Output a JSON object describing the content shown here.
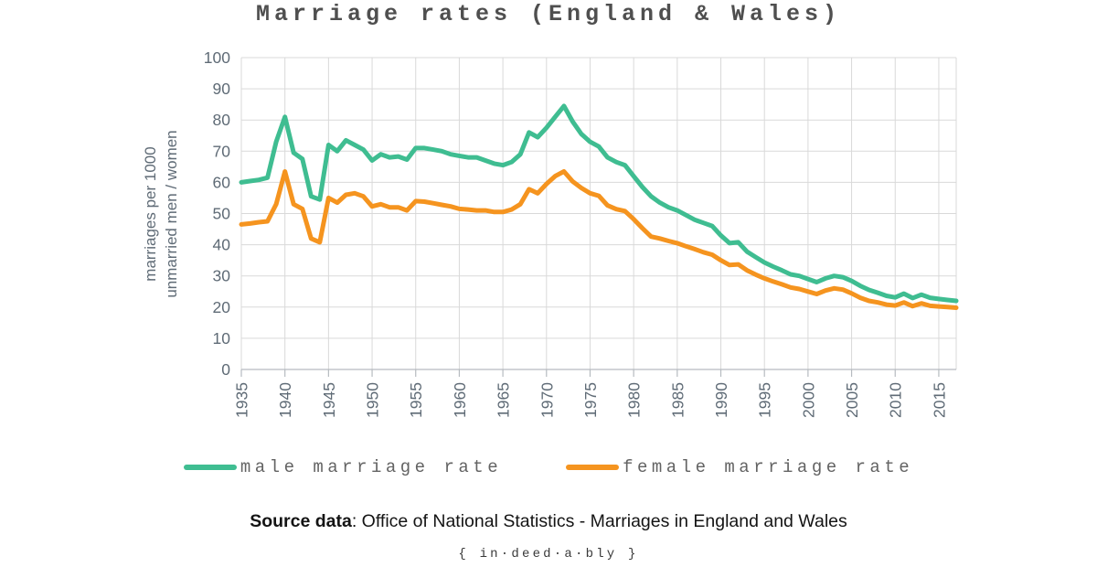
{
  "title": "Marriage rates (England & Wales)",
  "y_axis": {
    "title_line1": "marriages per 1000",
    "title_line2": "unmarried men / women"
  },
  "source": {
    "prefix": "Source data",
    "text": ": Office of National Statistics - Marriages in England and Wales"
  },
  "brand": "{ in·deed·a·bly }",
  "colors": {
    "male": "#3fbd91",
    "female": "#f5941f",
    "grid": "#d9d9d9",
    "axis_line": "#b6bbc0",
    "axis_text": "#5f6b76"
  },
  "chart_data": {
    "type": "line",
    "title": "Marriage rates (England & Wales)",
    "xlabel": "",
    "ylabel": "marriages per 1000 unmarried men / women",
    "ylim": [
      0,
      100
    ],
    "y_ticks": [
      0,
      10,
      20,
      30,
      40,
      50,
      60,
      70,
      80,
      90,
      100
    ],
    "x_ticks": [
      1935,
      1940,
      1945,
      1950,
      1955,
      1960,
      1965,
      1970,
      1975,
      1980,
      1985,
      1990,
      1995,
      2000,
      2005,
      2010,
      2015
    ],
    "grid": true,
    "legend_position": "bottom",
    "x": [
      1935,
      1936,
      1937,
      1938,
      1939,
      1940,
      1941,
      1942,
      1943,
      1944,
      1945,
      1946,
      1947,
      1948,
      1949,
      1950,
      1951,
      1952,
      1953,
      1954,
      1955,
      1956,
      1957,
      1958,
      1959,
      1960,
      1961,
      1962,
      1963,
      1964,
      1965,
      1966,
      1967,
      1968,
      1969,
      1970,
      1971,
      1972,
      1973,
      1974,
      1975,
      1976,
      1977,
      1978,
      1979,
      1980,
      1981,
      1982,
      1983,
      1984,
      1985,
      1986,
      1987,
      1988,
      1989,
      1990,
      1991,
      1992,
      1993,
      1994,
      1995,
      1996,
      1997,
      1998,
      1999,
      2000,
      2001,
      2002,
      2003,
      2004,
      2005,
      2006,
      2007,
      2008,
      2009,
      2010,
      2011,
      2012,
      2013,
      2014,
      2015,
      2016,
      2017
    ],
    "series": [
      {
        "name": "male marriage rate",
        "color": "#3fbd91",
        "values": [
          60.0,
          60.4,
          60.8,
          61.5,
          73.0,
          81.0,
          69.5,
          67.5,
          55.5,
          54.5,
          72.0,
          70.0,
          73.5,
          72.0,
          70.5,
          67.0,
          69.0,
          68.0,
          68.3,
          67.3,
          71.0,
          71.0,
          70.5,
          70.0,
          69.0,
          68.5,
          68.0,
          68.0,
          67.0,
          66.0,
          65.5,
          66.5,
          69.0,
          76.0,
          74.5,
          77.5,
          81.0,
          84.5,
          79.5,
          75.5,
          73.0,
          71.5,
          68.0,
          66.5,
          65.5,
          62.0,
          58.5,
          55.5,
          53.5,
          52.0,
          51.0,
          49.5,
          48.0,
          47.0,
          46.0,
          43.0,
          40.5,
          40.8,
          37.8,
          36.0,
          34.3,
          33.0,
          31.8,
          30.5,
          30.0,
          29.0,
          28.0,
          29.2,
          30.0,
          29.6,
          28.4,
          26.8,
          25.5,
          24.6,
          23.6,
          23.1,
          24.3,
          22.9,
          24.0,
          23.0,
          22.6,
          22.3,
          22.0
        ]
      },
      {
        "name": "female marriage rate",
        "color": "#f5941f",
        "values": [
          46.5,
          46.8,
          47.2,
          47.5,
          53.0,
          63.5,
          53.0,
          51.5,
          42.0,
          40.8,
          55.0,
          53.5,
          56.0,
          56.5,
          55.5,
          52.3,
          53.0,
          52.0,
          52.0,
          51.0,
          54.0,
          53.8,
          53.3,
          52.8,
          52.3,
          51.5,
          51.3,
          51.0,
          51.0,
          50.5,
          50.5,
          51.3,
          53.0,
          57.8,
          56.5,
          59.5,
          62.0,
          63.5,
          60.3,
          58.2,
          56.5,
          55.7,
          52.6,
          51.4,
          50.8,
          48.2,
          45.3,
          42.6,
          42.0,
          41.2,
          40.5,
          39.5,
          38.6,
          37.6,
          36.8,
          35.0,
          33.5,
          33.7,
          31.8,
          30.4,
          29.2,
          28.2,
          27.3,
          26.3,
          25.8,
          25.0,
          24.2,
          25.3,
          26.0,
          25.6,
          24.4,
          23.0,
          22.0,
          21.5,
          20.8,
          20.5,
          21.5,
          20.3,
          21.2,
          20.4,
          20.2,
          20.0,
          19.8
        ]
      }
    ]
  }
}
